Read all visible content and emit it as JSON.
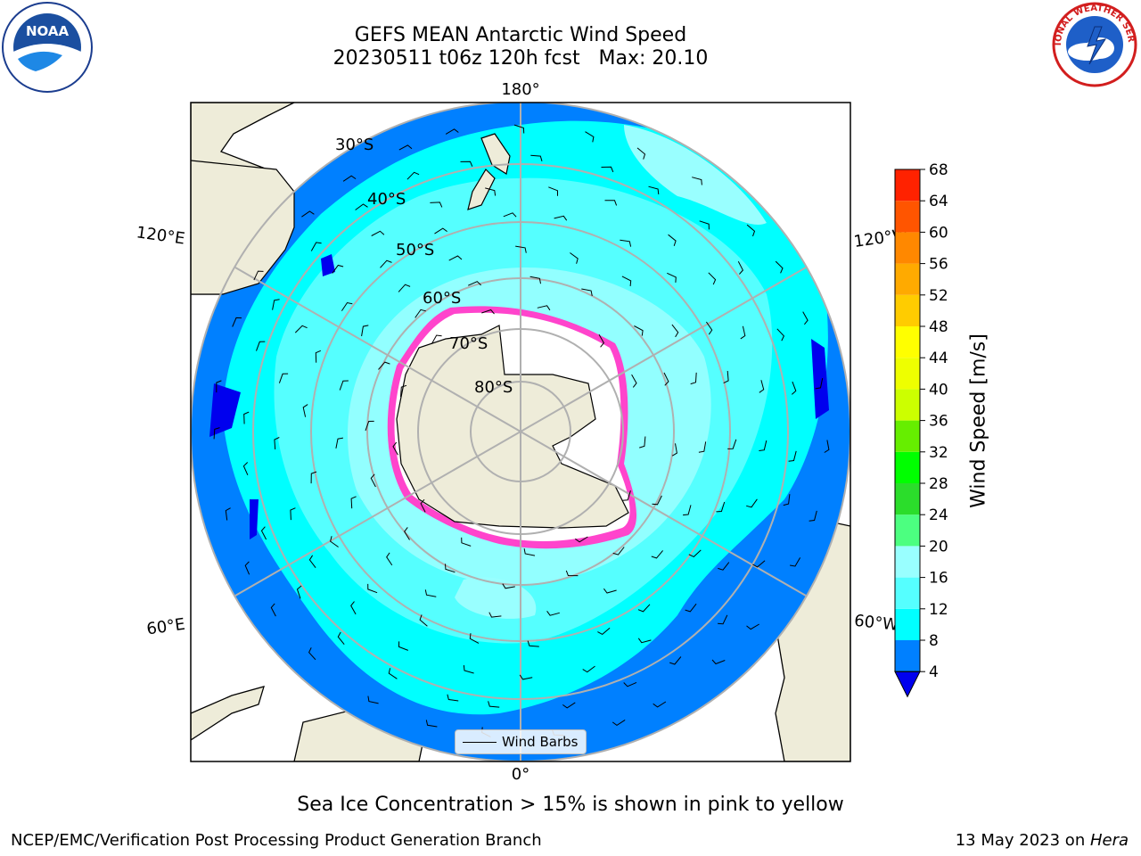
{
  "header": {
    "title_line1": "GEFS MEAN Antarctic Wind Speed",
    "title_line2": "20230511 t06z 120h fcst   Max: 20.10"
  },
  "logos": {
    "left": "noaa-logo",
    "left_text": "NOAA",
    "left_ring_text": "NATIONAL OCEANIC AND ATMOSPHERIC ADMINISTRATION · U.S. DEPARTMENT OF COMMERCE",
    "right": "national-weather-service-logo",
    "right_ring_text": "NATIONAL WEATHER SERVICE"
  },
  "map": {
    "projection": "south-polar-stereographic",
    "longitude_labels": {
      "top": "180°",
      "bottom": "0°",
      "upper_left": "120°E",
      "upper_right": "120°W",
      "lower_left": "60°E",
      "lower_right": "60°W"
    },
    "latitude_labels": [
      "30°S",
      "40°S",
      "50°S",
      "60°S",
      "70°S",
      "80°S"
    ],
    "colors": {
      "land": "#eeecd9",
      "ocean_low": "#0080ff",
      "ocean_8": "#00ffff",
      "ocean_12": "#55ffff",
      "ocean_16": "#99ffff",
      "ice_edge": "#ff44cc",
      "ice_edge_yellow": "#ffdd55",
      "grid": "#b0b0b0"
    }
  },
  "legend": {
    "label": "Wind Barbs"
  },
  "colorbar": {
    "label": "Wind Speed [m/s]",
    "ticks": [
      "4",
      "8",
      "12",
      "16",
      "20",
      "24",
      "28",
      "32",
      "36",
      "40",
      "44",
      "48",
      "52",
      "56",
      "60",
      "64",
      "68"
    ],
    "colors": [
      "#0080ff",
      "#00ffff",
      "#55ffff",
      "#99ffff",
      "#4cff80",
      "#2bdd2b",
      "#00ff00",
      "#66ee00",
      "#ccff00",
      "#eeff00",
      "#ffff00",
      "#ffcc00",
      "#ffaa00",
      "#ff8800",
      "#ff5500",
      "#ff2200"
    ],
    "below_color": "#0000ee"
  },
  "footer": {
    "note": "Sea Ice Concentration > 15% is shown in pink to yellow",
    "left": "NCEP/EMC/Verification Post Processing Product Generation Branch",
    "right_prefix": "13 May 2023 on ",
    "right_host": "Hera"
  }
}
